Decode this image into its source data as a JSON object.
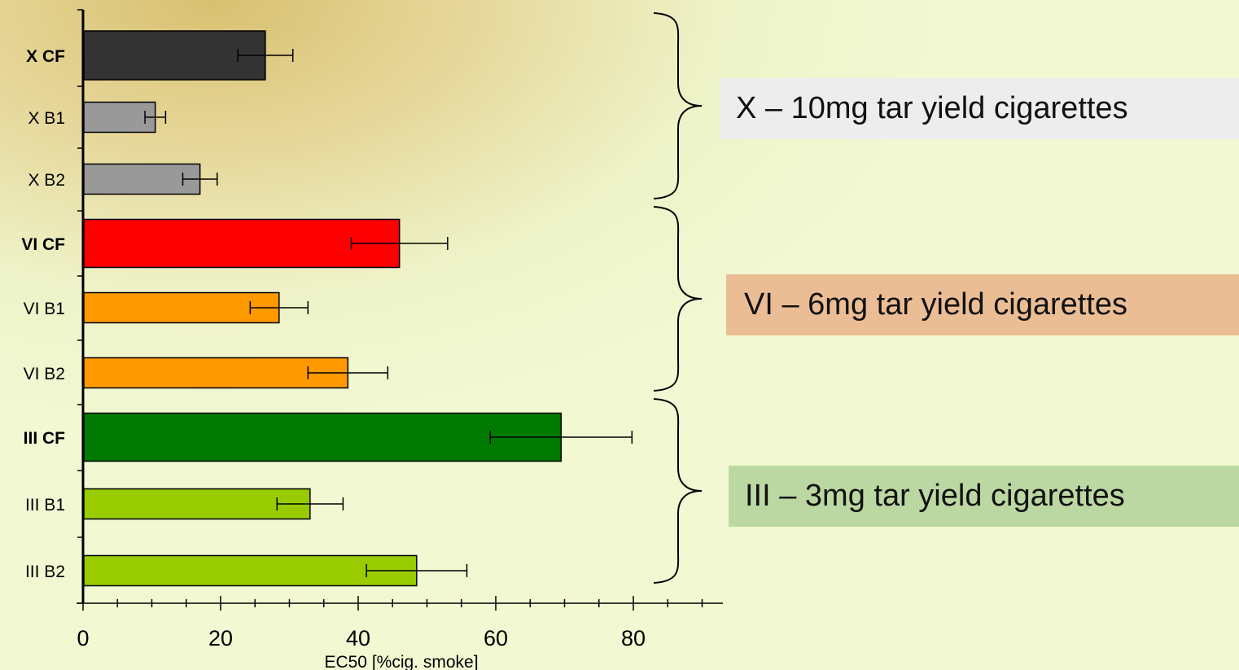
{
  "chart_data": {
    "type": "bar",
    "orientation": "horizontal",
    "xlabel": "EC50 [%cig. smoke]",
    "xlim": [
      0,
      92
    ],
    "xticks": [
      0,
      20,
      40,
      60,
      80
    ],
    "categories": [
      "X CF",
      "X B1",
      "X B2",
      "VI CF",
      "VI B1",
      "VI B2",
      "III CF",
      "III B1",
      "III B2"
    ],
    "bold_categories": [
      "X CF",
      "VI CF",
      "III CF"
    ],
    "values": [
      26.5,
      10.5,
      17,
      46,
      28.5,
      38.5,
      69.5,
      33,
      48.5
    ],
    "errors": [
      4,
      1.5,
      2.5,
      7,
      4.2,
      5.8,
      10.3,
      4.8,
      7.3
    ],
    "colors": [
      "#333333",
      "#999999",
      "#999999",
      "#ff0000",
      "#ff9900",
      "#ff9900",
      "#007a00",
      "#99cc00",
      "#99cc00"
    ],
    "groups": [
      {
        "label": "X – 10mg tar yield cigarettes",
        "bg": "#ededed"
      },
      {
        "label": "VI – 6mg tar yield cigarettes",
        "bg": "#ebbd94"
      },
      {
        "label": "III – 3mg tar yield cigarettes",
        "bg": "#bcd8a2"
      }
    ]
  }
}
